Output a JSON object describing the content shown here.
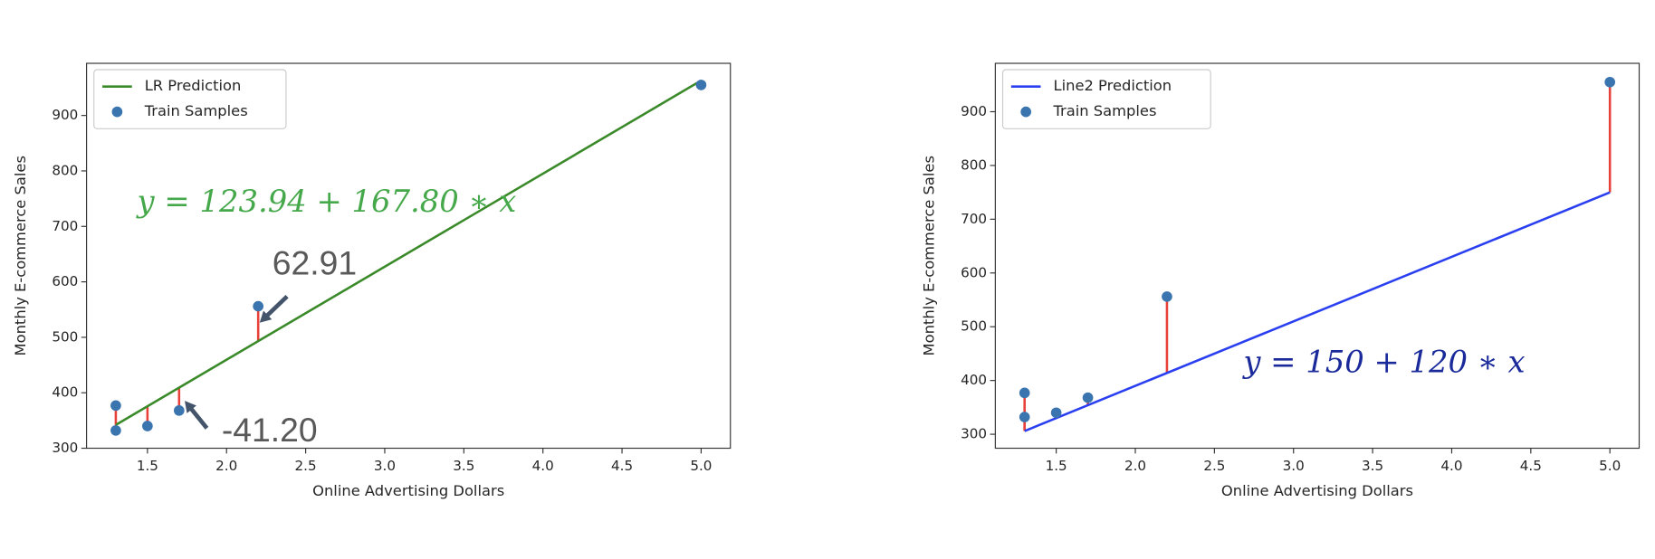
{
  "chart_data": [
    {
      "type": "scatter",
      "xlabel": "Online Advertising Dollars",
      "ylabel": "Monthly E-commerce Sales",
      "xlim": [
        1.115,
        5.185
      ],
      "ylim": [
        300,
        994
      ],
      "xticks": [
        1.5,
        {
          "value": 2,
          "label": "2.0"
        },
        2.5,
        {
          "value": 3,
          "label": "3.0"
        },
        3.5,
        {
          "value": 4,
          "label": "4.0"
        },
        4.5,
        {
          "value": 5,
          "label": "5.0"
        }
      ],
      "yticks": [
        300,
        400,
        500,
        600,
        700,
        800,
        900
      ],
      "legend": "upper left",
      "residual_color": "#e8413a",
      "series": [
        {
          "name": "LR Prediction",
          "type": "line",
          "color": "#3a8a2a",
          "x": [
            1.3,
            5.0
          ],
          "values": [
            342.1,
            962.9
          ]
        },
        {
          "name": "Train Samples",
          "type": "scatter",
          "color": "#3b75af",
          "x": [
            1.3,
            1.3,
            1.5,
            1.7,
            2.2,
            5.0
          ],
          "values": [
            377,
            332,
            340,
            368,
            556,
            955
          ]
        }
      ],
      "annotations": [
        {
          "text": "y = 123.94 + 167.80  ∗ x",
          "color": "#45a84a"
        },
        {
          "text": "62.91",
          "color": "#595959"
        },
        {
          "text": "-41.20",
          "color": "#595959"
        }
      ]
    },
    {
      "type": "scatter",
      "xlabel": "Online Advertising Dollars",
      "ylabel": "Monthly E-commerce Sales",
      "xlim": [
        1.115,
        5.185
      ],
      "ylim": [
        274,
        990
      ],
      "xticks": [
        1.5,
        {
          "value": 2,
          "label": "2.0"
        },
        2.5,
        {
          "value": 3,
          "label": "3.0"
        },
        3.5,
        {
          "value": 4,
          "label": "4.0"
        },
        4.5,
        {
          "value": 5,
          "label": "5.0"
        }
      ],
      "yticks": [
        300,
        400,
        500,
        600,
        700,
        800,
        900
      ],
      "legend": "upper left",
      "residual_color": "#e8413a",
      "series": [
        {
          "name": "Line2 Prediction",
          "type": "line",
          "color": "#2a3ff0",
          "x": [
            1.3,
            5.0
          ],
          "values": [
            306,
            750
          ]
        },
        {
          "name": "Train Samples",
          "type": "scatter",
          "color": "#3b75af",
          "x": [
            1.3,
            1.3,
            1.5,
            1.7,
            2.2,
            5.0
          ],
          "values": [
            377,
            332,
            340,
            368,
            556,
            955
          ]
        }
      ],
      "annotations": [
        {
          "text": "y = 150 + 120  ∗ x",
          "color": "#1a2a9a"
        }
      ]
    }
  ]
}
